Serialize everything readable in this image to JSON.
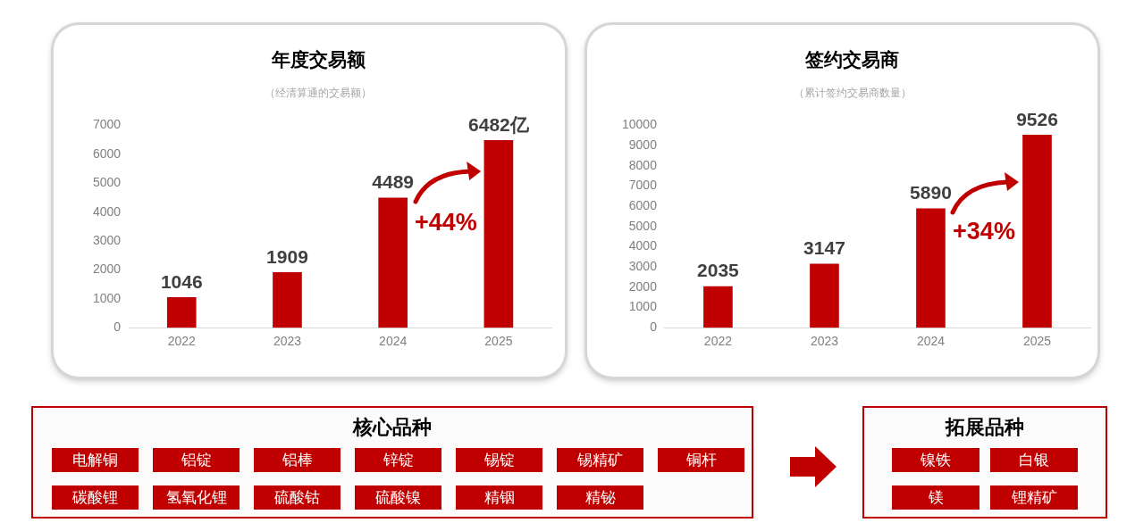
{
  "chart_data": [
    {
      "type": "bar",
      "title": "年度交易额",
      "subtitle": "（经清算通的交易额）",
      "categories": [
        "2022",
        "2023",
        "2024",
        "2025"
      ],
      "values": [
        1046,
        1909,
        4489,
        6482
      ],
      "value_labels": [
        "1046",
        "1909",
        "4489",
        "6482亿"
      ],
      "color": "#c00000",
      "ylim": [
        0,
        7000
      ],
      "yticks": [
        0,
        1000,
        2000,
        3000,
        4000,
        5000,
        6000,
        7000
      ],
      "annotations": [
        "+44%"
      ]
    },
    {
      "type": "bar",
      "title": "签约交易商",
      "subtitle": "（累计签约交易商数量）",
      "categories": [
        "2022",
        "2023",
        "2024",
        "2025"
      ],
      "values": [
        2035,
        3147,
        5890,
        9526
      ],
      "data_labels": true,
      "color": "#c00000",
      "ylim": [
        0,
        10000
      ],
      "yticks": [
        0,
        1000,
        2000,
        3000,
        4000,
        5000,
        6000,
        7000,
        8000,
        9000,
        10000
      ],
      "annotations": [
        "+34%"
      ]
    },
    {
      "type": "other",
      "title": "核心品种",
      "annotations": [
        "电解铜",
        "铝锭",
        "铝棒",
        "锌锭",
        "锡锭",
        "锡精矿",
        "铜杆",
        "碳酸锂",
        "氢氧化锂",
        "硫酸钴",
        "硫酸镍",
        "精铟",
        "精铋"
      ]
    },
    {
      "type": "other",
      "title": "拓展品种",
      "annotations": [
        "镍铁",
        "白银",
        "镁",
        "锂精矿"
      ]
    }
  ]
}
